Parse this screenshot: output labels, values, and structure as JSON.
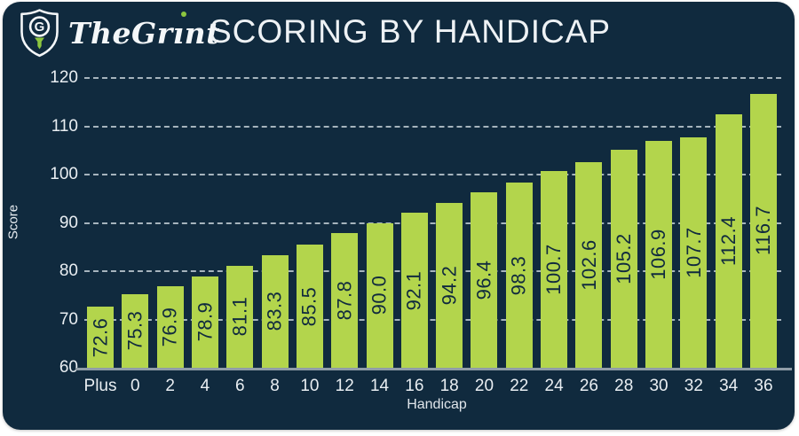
{
  "header": {
    "logo_text": "TheGrint",
    "title": "SCORING BY HANDICAP"
  },
  "chart_data": {
    "type": "bar",
    "title": "SCORING BY HANDICAP",
    "categories": [
      "Plus",
      "0",
      "2",
      "4",
      "6",
      "8",
      "10",
      "12",
      "14",
      "16",
      "18",
      "20",
      "22",
      "24",
      "26",
      "28",
      "30",
      "32",
      "34",
      "36"
    ],
    "values": [
      72.6,
      75.3,
      76.9,
      78.9,
      81.1,
      83.3,
      85.5,
      87.8,
      90.0,
      92.1,
      94.2,
      96.4,
      98.3,
      100.7,
      102.6,
      105.2,
      106.9,
      107.7,
      112.4,
      116.7
    ],
    "xlabel": "Handicap",
    "ylabel": "Score",
    "ylim": [
      60,
      120
    ],
    "ytick_step": 10,
    "grid": "dashed-horizontal",
    "legend": "none",
    "value_labels": "inside-bar-rotated",
    "colors": {
      "background": "#102a3e",
      "bar": "#b3d54c",
      "bar_label": "#102a3e",
      "axis_text": "#e9eef2",
      "gridline": "#bbc7cf",
      "axis_line": "#909da7",
      "accent_green": "#8dc63f"
    }
  }
}
